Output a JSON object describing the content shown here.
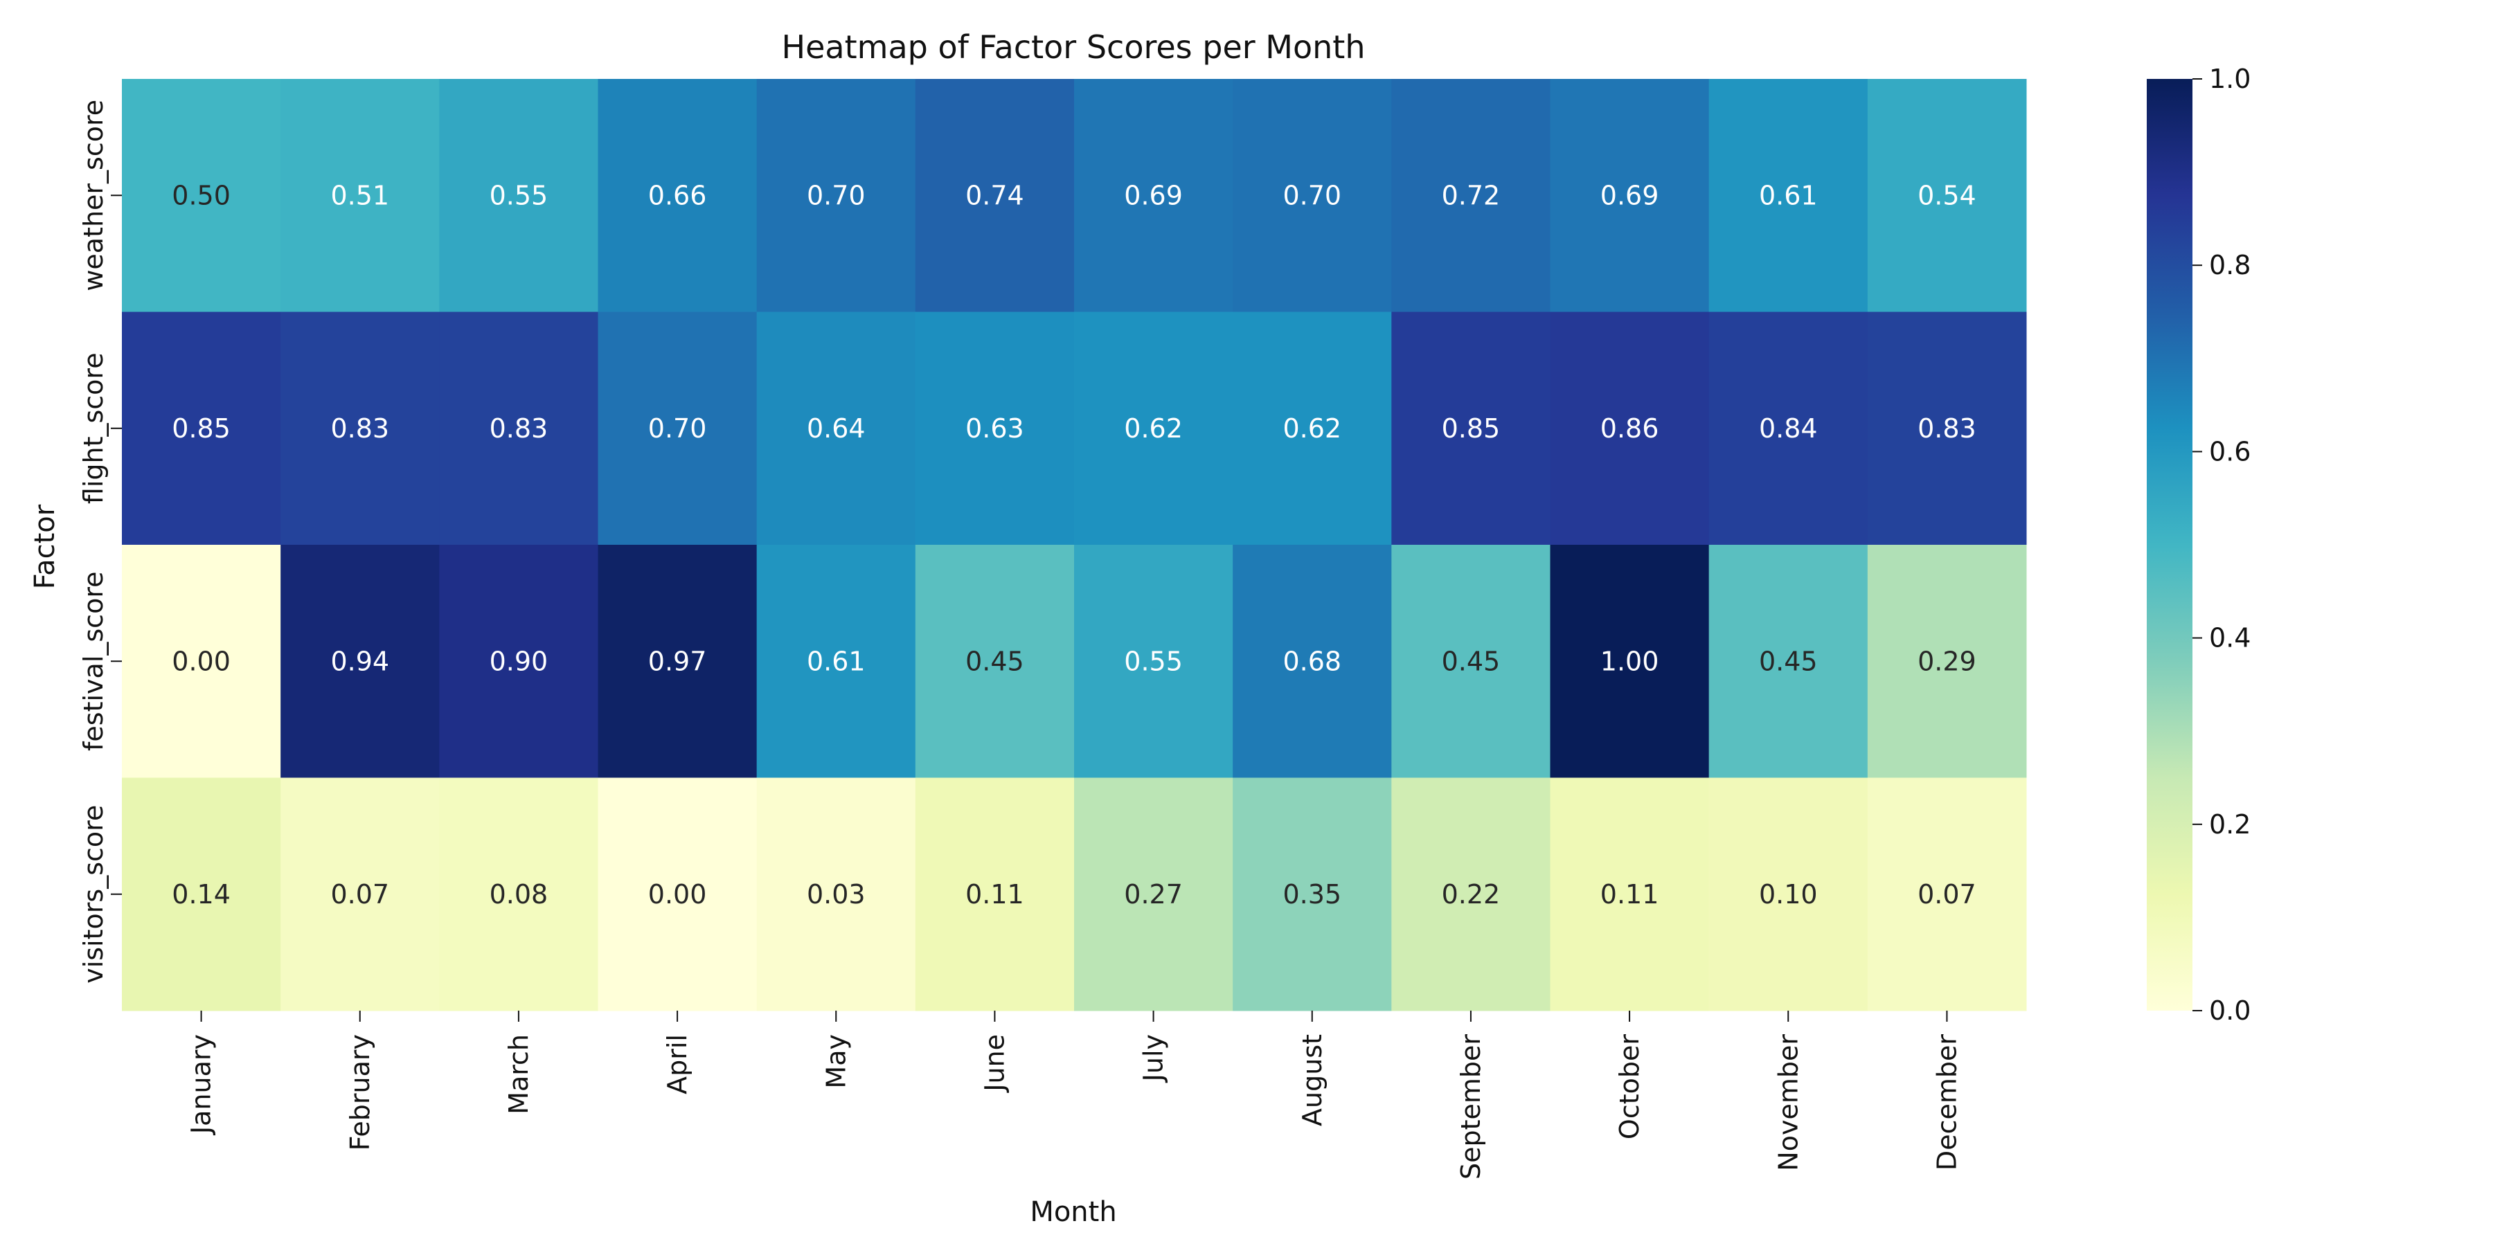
{
  "chart_data": {
    "type": "heatmap",
    "title": "Heatmap of Factor Scores per Month",
    "xlabel": "Month",
    "ylabel": "Factor",
    "x_categories": [
      "January",
      "February",
      "March",
      "April",
      "May",
      "June",
      "July",
      "August",
      "September",
      "October",
      "November",
      "December"
    ],
    "y_categories": [
      "weather_score",
      "flight_score",
      "festival_score",
      "visitors_score"
    ],
    "values": [
      [
        0.5,
        0.51,
        0.55,
        0.66,
        0.7,
        0.74,
        0.69,
        0.7,
        0.72,
        0.69,
        0.61,
        0.54
      ],
      [
        0.85,
        0.83,
        0.83,
        0.7,
        0.64,
        0.63,
        0.62,
        0.62,
        0.85,
        0.86,
        0.84,
        0.83
      ],
      [
        0.0,
        0.94,
        0.9,
        0.97,
        0.61,
        0.45,
        0.55,
        0.68,
        0.45,
        1.0,
        0.45,
        0.29
      ],
      [
        0.14,
        0.07,
        0.08,
        0.0,
        0.03,
        0.11,
        0.27,
        0.35,
        0.22,
        0.11,
        0.1,
        0.07
      ]
    ],
    "value_format": "2 decimals",
    "colormap": "YlGnBu",
    "colorbar": {
      "range": [
        0.0,
        1.0
      ],
      "ticks": [
        "0.0",
        "0.2",
        "0.4",
        "0.6",
        "0.8",
        "1.0"
      ]
    },
    "grid": false,
    "legend": "colorbar right"
  },
  "colors": {
    "colormap_stops": [
      "#ffffd9",
      "#edf8b1",
      "#c7e9b4",
      "#7fcdbb",
      "#41b6c4",
      "#1d91c0",
      "#225ea8",
      "#253494",
      "#081d58"
    ],
    "text_dark": "#262626",
    "text_light": "#ffffff"
  }
}
